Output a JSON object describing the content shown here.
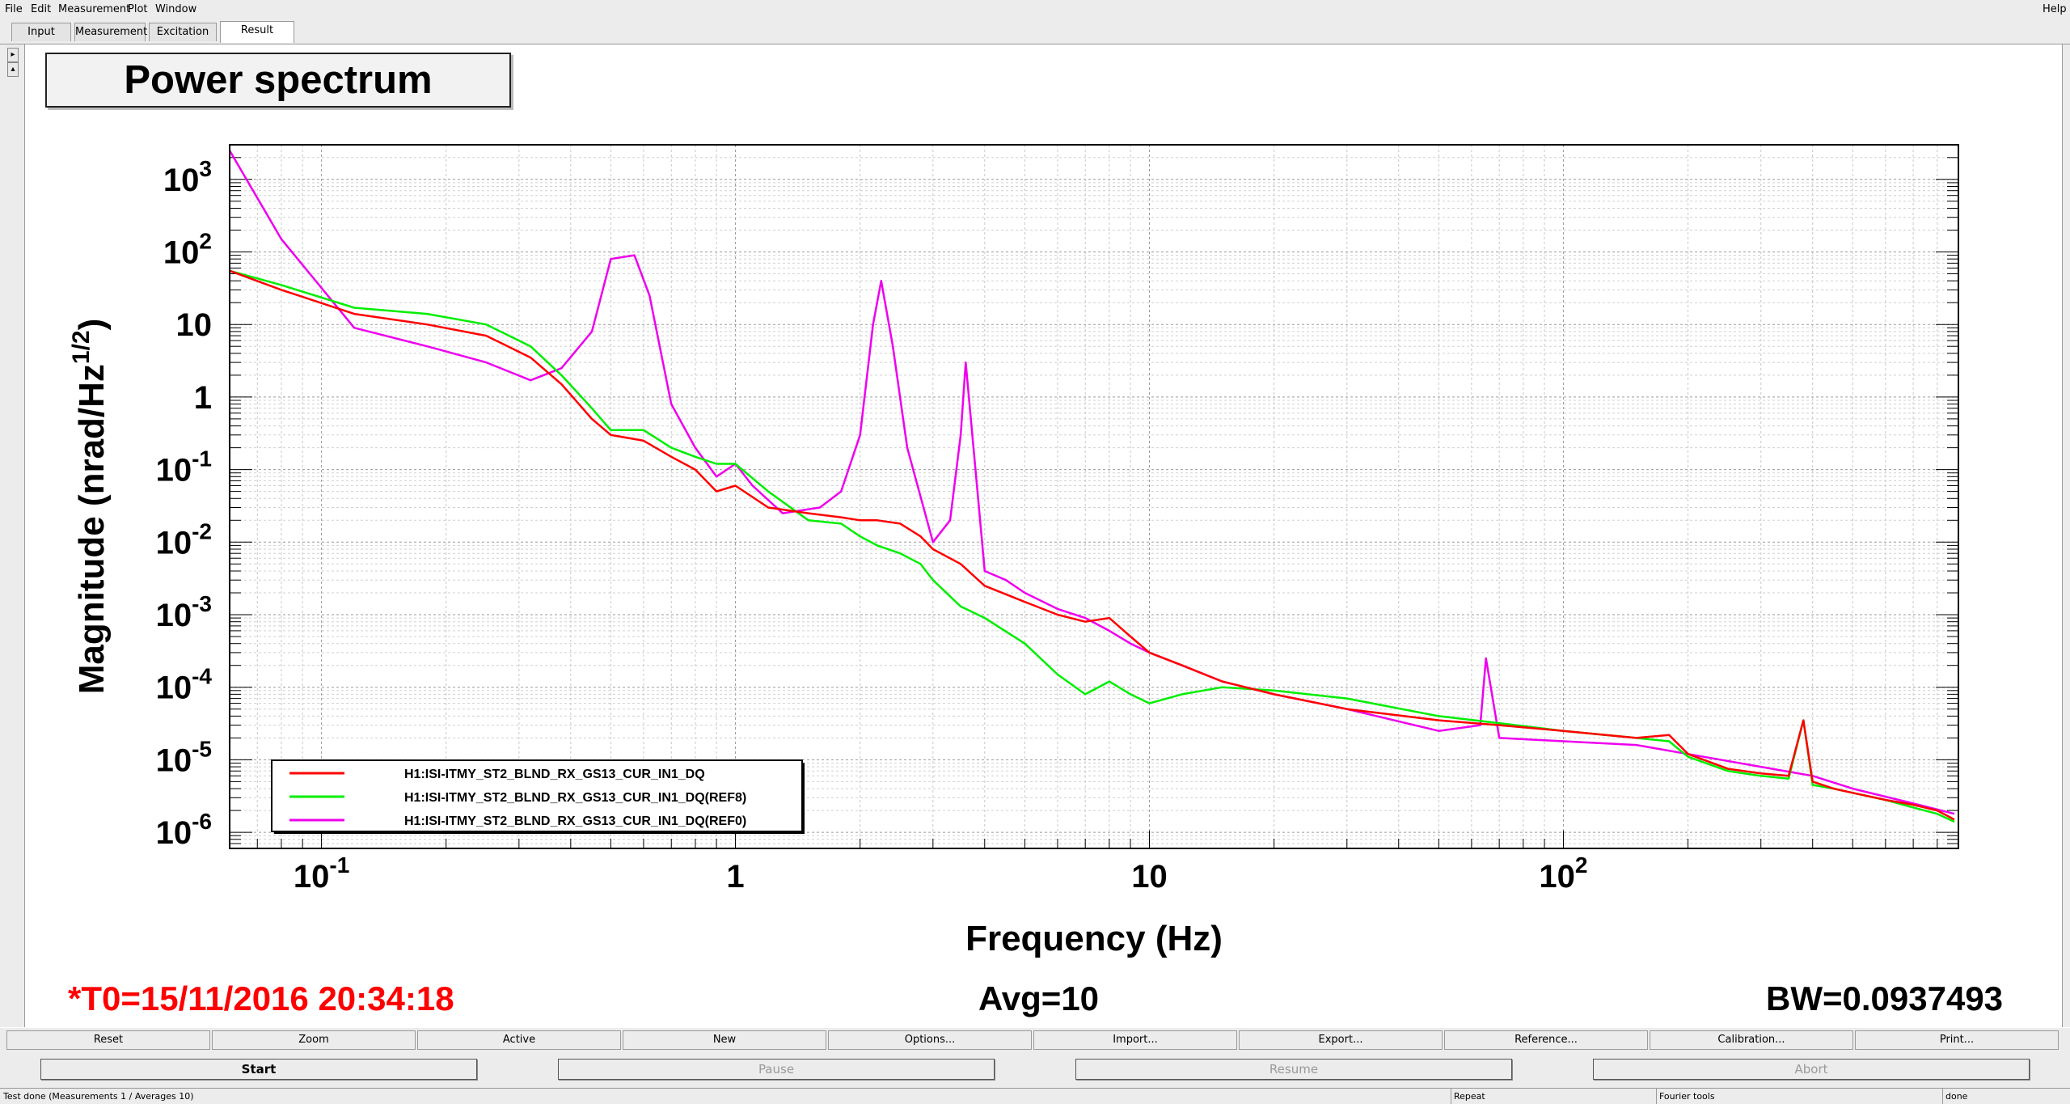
{
  "menu": {
    "items": [
      "File",
      "Edit",
      "Measurement",
      "Plot",
      "Window"
    ],
    "help": "Help"
  },
  "tabs": [
    "Input",
    "Measurement",
    "Excitation",
    "Result"
  ],
  "active_tab": "Result",
  "plot_title": "Power spectrum",
  "footer": {
    "t0": "*T0=15/11/2016 20:34:18",
    "avg": "Avg=10",
    "bw": "BW=0.0937493"
  },
  "toolbar": [
    "Reset",
    "Zoom",
    "Active",
    "New",
    "Options...",
    "Import...",
    "Export...",
    "Reference...",
    "Calibration...",
    "Print..."
  ],
  "controls": {
    "start": "Start",
    "pause": "Pause",
    "resume": "Resume",
    "abort": "Abort"
  },
  "status": {
    "message": "Test done (Measurements 1 / Averages 10)",
    "repeat": "Repeat",
    "tools": "Fourier tools",
    "state": "done"
  },
  "colors": {
    "series_red": "#ff0000",
    "series_green": "#00ee00",
    "series_magenta": "#ee00ee",
    "footer_red": "#ff0000"
  },
  "chart_data": {
    "type": "line",
    "title": "Power spectrum",
    "xlabel": "Frequency (Hz)",
    "ylabel": "Magnitude (nrad/Hz",
    "ylabel_sup": "1/2",
    "ylabel_close": ")",
    "x_scale": "log",
    "y_scale": "log",
    "xlim": [
      0.06,
      900
    ],
    "ylim": [
      6e-07,
      3000
    ],
    "grid": true,
    "legend_position": "bottom-left",
    "x_ticks": [
      {
        "value": 0.1,
        "base": "10",
        "exp": "-1"
      },
      {
        "value": 1,
        "base": "1",
        "exp": ""
      },
      {
        "value": 10,
        "base": "10",
        "exp": ""
      },
      {
        "value": 100,
        "base": "10",
        "exp": "2"
      }
    ],
    "y_ticks": [
      {
        "value": 1000,
        "base": "10",
        "exp": "3"
      },
      {
        "value": 100,
        "base": "10",
        "exp": "2"
      },
      {
        "value": 10,
        "base": "10",
        "exp": ""
      },
      {
        "value": 1,
        "base": "1",
        "exp": ""
      },
      {
        "value": 0.1,
        "base": "10",
        "exp": "-1"
      },
      {
        "value": 0.01,
        "base": "10",
        "exp": "-2"
      },
      {
        "value": 0.001,
        "base": "10",
        "exp": "-3"
      },
      {
        "value": 0.0001,
        "base": "10",
        "exp": "-4"
      },
      {
        "value": 1e-05,
        "base": "10",
        "exp": "-5"
      },
      {
        "value": 1e-06,
        "base": "10",
        "exp": "-6"
      }
    ],
    "series": [
      {
        "name": "H1:ISI-ITMY_ST2_BLND_RX_GS13_CUR_IN1_DQ",
        "color": "#ff0000",
        "x": [
          0.06,
          0.08,
          0.12,
          0.18,
          0.25,
          0.32,
          0.38,
          0.45,
          0.5,
          0.6,
          0.7,
          0.8,
          0.9,
          1.0,
          1.2,
          1.5,
          1.8,
          2.0,
          2.2,
          2.5,
          2.8,
          3.0,
          3.5,
          4.0,
          5.0,
          6.0,
          7.0,
          8.0,
          9.0,
          10,
          12,
          15,
          20,
          30,
          50,
          70,
          100,
          150,
          180,
          200,
          250,
          300,
          350,
          380,
          400,
          450,
          500,
          600,
          700,
          800,
          880
        ],
        "y": [
          55,
          30,
          14,
          10,
          7,
          3.5,
          1.5,
          0.5,
          0.3,
          0.25,
          0.15,
          0.1,
          0.05,
          0.06,
          0.03,
          0.025,
          0.022,
          0.02,
          0.02,
          0.018,
          0.012,
          0.008,
          0.005,
          0.0025,
          0.0015,
          0.001,
          0.0008,
          0.0009,
          0.0005,
          0.0003,
          0.0002,
          0.00012,
          8e-05,
          5e-05,
          3.5e-05,
          3e-05,
          2.5e-05,
          2e-05,
          2.2e-05,
          1.2e-05,
          7.5e-06,
          6.5e-06,
          6e-06,
          3.5e-05,
          5e-06,
          4e-06,
          3.5e-06,
          2.8e-06,
          2.4e-06,
          2e-06,
          1.5e-06
        ]
      },
      {
        "name": "H1:ISI-ITMY_ST2_BLND_RX_GS13_CUR_IN1_DQ(REF8)",
        "color": "#00ee00",
        "x": [
          0.06,
          0.08,
          0.12,
          0.18,
          0.25,
          0.32,
          0.38,
          0.45,
          0.5,
          0.6,
          0.7,
          0.8,
          0.9,
          1.0,
          1.2,
          1.5,
          1.8,
          2.0,
          2.2,
          2.5,
          2.8,
          3.0,
          3.5,
          4.0,
          5.0,
          6.0,
          7.0,
          8.0,
          9.0,
          10,
          12,
          15,
          20,
          30,
          50,
          70,
          100,
          150,
          180,
          200,
          250,
          300,
          350,
          380,
          400,
          450,
          500,
          600,
          700,
          800,
          880
        ],
        "y": [
          55,
          35,
          17,
          14,
          10,
          5,
          2,
          0.7,
          0.35,
          0.35,
          0.2,
          0.15,
          0.12,
          0.12,
          0.05,
          0.02,
          0.018,
          0.012,
          0.009,
          0.007,
          0.005,
          0.003,
          0.0013,
          0.0009,
          0.0004,
          0.00015,
          8e-05,
          0.00012,
          8e-05,
          6e-05,
          8e-05,
          0.0001,
          9e-05,
          7e-05,
          4e-05,
          3.2e-05,
          2.5e-05,
          2e-05,
          1.8e-05,
          1.1e-05,
          7e-06,
          6e-06,
          5.5e-06,
          3.5e-05,
          4.5e-06,
          4e-06,
          3.5e-06,
          2.8e-06,
          2.2e-06,
          1.8e-06,
          1.4e-06
        ]
      },
      {
        "name": "H1:ISI-ITMY_ST2_BLND_RX_GS13_CUR_IN1_DQ(REF0)",
        "color": "#ee00ee",
        "x": [
          0.06,
          0.08,
          0.12,
          0.18,
          0.25,
          0.32,
          0.38,
          0.45,
          0.5,
          0.57,
          0.62,
          0.7,
          0.8,
          0.9,
          1.0,
          1.1,
          1.3,
          1.6,
          1.8,
          2.0,
          2.15,
          2.25,
          2.4,
          2.6,
          3.0,
          3.3,
          3.5,
          3.6,
          3.8,
          4.0,
          4.5,
          5.0,
          6.0,
          7.0,
          8.0,
          9.0,
          10,
          12,
          15,
          20,
          30,
          50,
          63,
          65,
          70,
          100,
          150,
          200,
          300,
          400,
          500,
          700,
          880
        ],
        "y": [
          2500,
          150,
          9,
          5,
          3,
          1.7,
          2.5,
          8,
          80,
          90,
          25,
          0.8,
          0.2,
          0.08,
          0.12,
          0.06,
          0.025,
          0.03,
          0.05,
          0.3,
          10,
          40,
          5,
          0.2,
          0.01,
          0.02,
          0.3,
          3,
          0.1,
          0.004,
          0.003,
          0.002,
          0.0012,
          0.0009,
          0.0006,
          0.0004,
          0.0003,
          0.0002,
          0.00012,
          8e-05,
          5e-05,
          2.5e-05,
          3e-05,
          0.00025,
          2e-05,
          1.8e-05,
          1.6e-05,
          1.2e-05,
          8e-06,
          6e-06,
          4e-06,
          2.5e-06,
          1.8e-06
        ]
      }
    ]
  }
}
